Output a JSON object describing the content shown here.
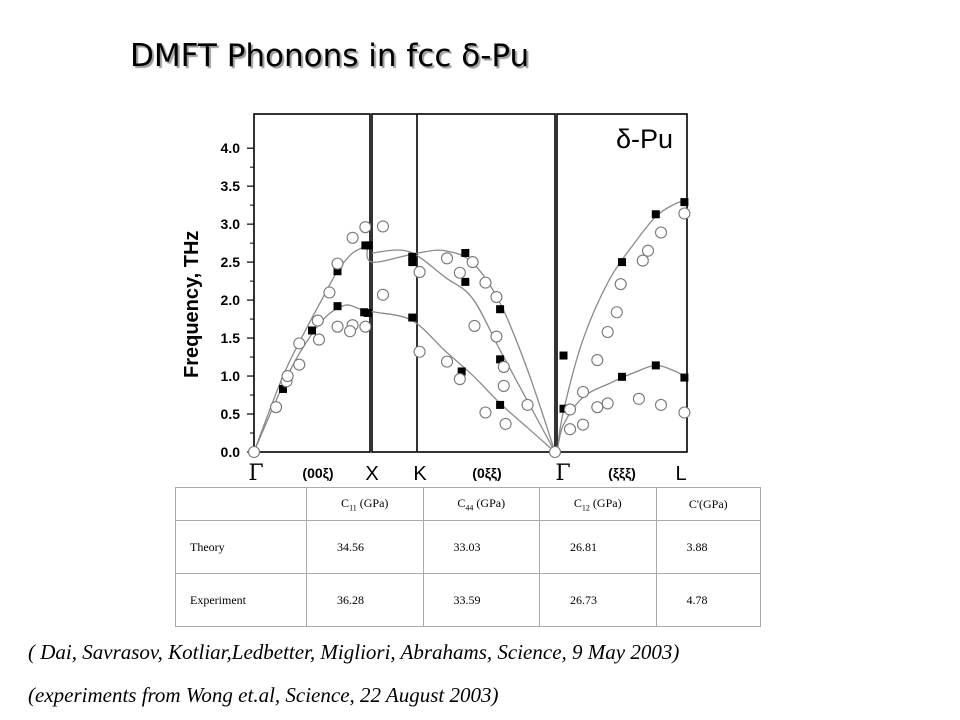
{
  "title": "DMFT  Phonons in fcc δ-Pu",
  "chart_data": {
    "type": "scatter",
    "ylabel": "Frequency, THz",
    "ylim": [
      0.0,
      4.5
    ],
    "yticks": [
      "0.0",
      "0.5",
      "1.0",
      "1.5",
      "2.0",
      "2.5",
      "3.0",
      "3.5",
      "4.0"
    ],
    "legend_label": "δ-Pu",
    "panels": [
      {
        "xlim": [
          0,
          1
        ],
        "direction": "(00ξ)",
        "ends": [
          "Γ",
          "X"
        ]
      },
      {
        "xlim": [
          0,
          1
        ],
        "direction": "(0ξξ)",
        "ends": [
          "K",
          "Γ"
        ]
      },
      {
        "xlim": [
          0,
          1
        ],
        "direction": "(ξξξ)",
        "ends": [
          "Γ",
          "L"
        ]
      }
    ],
    "symmetry_points": [
      "Γ",
      "X",
      "K",
      "Γ",
      "L"
    ],
    "series": [
      {
        "marker": "filled-square",
        "kind": "theory",
        "points": [
          {
            "panel": 0,
            "x": 0.0,
            "y": 0.0
          },
          {
            "panel": 0,
            "x": 0.25,
            "y": 0.83
          },
          {
            "panel": 0,
            "x": 0.5,
            "y": 1.6
          },
          {
            "panel": 0,
            "x": 0.72,
            "y": 1.92
          },
          {
            "panel": 0,
            "x": 0.95,
            "y": 1.84
          },
          {
            "panel": 0,
            "x": 0.98,
            "y": 1.83
          },
          {
            "panel": 0,
            "x": 0.72,
            "y": 2.38
          },
          {
            "panel": 0,
            "x": 0.96,
            "y": 2.72
          },
          {
            "panel": 0,
            "x": 0.99,
            "y": 2.72
          },
          {
            "panel": 1,
            "x": 0.22,
            "y": 2.57
          },
          {
            "panel": 1,
            "x": 0.22,
            "y": 2.5
          },
          {
            "panel": 1,
            "x": 0.51,
            "y": 2.62
          },
          {
            "panel": 1,
            "x": 0.51,
            "y": 2.24
          },
          {
            "panel": 1,
            "x": 0.7,
            "y": 1.88
          },
          {
            "panel": 1,
            "x": 0.7,
            "y": 1.22
          },
          {
            "panel": 1,
            "x": 0.22,
            "y": 1.77
          },
          {
            "panel": 1,
            "x": 0.49,
            "y": 1.06
          },
          {
            "panel": 1,
            "x": 0.7,
            "y": 0.62
          },
          {
            "panel": 1,
            "x": 1.0,
            "y": 0.0
          },
          {
            "panel": 2,
            "x": 0.05,
            "y": 1.27
          },
          {
            "panel": 2,
            "x": 0.05,
            "y": 0.57
          },
          {
            "panel": 2,
            "x": 0.5,
            "y": 2.5
          },
          {
            "panel": 2,
            "x": 0.5,
            "y": 0.99
          },
          {
            "panel": 2,
            "x": 0.76,
            "y": 3.13
          },
          {
            "panel": 2,
            "x": 0.76,
            "y": 1.14
          },
          {
            "panel": 2,
            "x": 0.98,
            "y": 3.29
          },
          {
            "panel": 2,
            "x": 0.98,
            "y": 0.98
          }
        ]
      },
      {
        "marker": "open-circle",
        "kind": "experiment",
        "points": [
          {
            "panel": 0,
            "x": 0.0,
            "y": 0.0
          },
          {
            "panel": 0,
            "x": 0.19,
            "y": 0.59
          },
          {
            "panel": 0,
            "x": 0.28,
            "y": 0.93
          },
          {
            "panel": 0,
            "x": 0.29,
            "y": 1.0
          },
          {
            "panel": 0,
            "x": 0.39,
            "y": 1.43
          },
          {
            "panel": 0,
            "x": 0.39,
            "y": 1.15
          },
          {
            "panel": 0,
            "x": 0.55,
            "y": 1.73
          },
          {
            "panel": 0,
            "x": 0.56,
            "y": 1.48
          },
          {
            "panel": 0,
            "x": 0.65,
            "y": 2.1
          },
          {
            "panel": 0,
            "x": 0.72,
            "y": 2.48
          },
          {
            "panel": 0,
            "x": 0.72,
            "y": 1.65
          },
          {
            "panel": 0,
            "x": 0.85,
            "y": 2.82
          },
          {
            "panel": 0,
            "x": 0.85,
            "y": 1.67
          },
          {
            "panel": 0,
            "x": 0.96,
            "y": 2.96
          },
          {
            "panel": 0,
            "x": 0.96,
            "y": 1.65
          },
          {
            "panel": 1,
            "x": 0.06,
            "y": 2.97
          },
          {
            "panel": 1,
            "x": 0.06,
            "y": 2.07
          },
          {
            "panel": 1,
            "x": -0.12,
            "y": 1.59
          },
          {
            "panel": 1,
            "x": 0.26,
            "y": 2.37
          },
          {
            "panel": 1,
            "x": 0.26,
            "y": 1.32
          },
          {
            "panel": 1,
            "x": 0.41,
            "y": 2.55
          },
          {
            "panel": 1,
            "x": 0.41,
            "y": 1.19
          },
          {
            "panel": 1,
            "x": 0.48,
            "y": 2.36
          },
          {
            "panel": 1,
            "x": 0.48,
            "y": 0.96
          },
          {
            "panel": 1,
            "x": 0.55,
            "y": 2.5
          },
          {
            "panel": 1,
            "x": 0.56,
            "y": 1.66
          },
          {
            "panel": 1,
            "x": 0.62,
            "y": 2.23
          },
          {
            "panel": 1,
            "x": 0.62,
            "y": 0.52
          },
          {
            "panel": 1,
            "x": 0.68,
            "y": 2.04
          },
          {
            "panel": 1,
            "x": 0.68,
            "y": 1.52
          },
          {
            "panel": 1,
            "x": 0.72,
            "y": 1.12
          },
          {
            "panel": 1,
            "x": 0.72,
            "y": 0.87
          },
          {
            "panel": 1,
            "x": 0.73,
            "y": 0.37
          },
          {
            "panel": 1,
            "x": 0.85,
            "y": 0.62
          },
          {
            "panel": 1,
            "x": 1.0,
            "y": 0.0
          },
          {
            "panel": 2,
            "x": 0.1,
            "y": 0.56
          },
          {
            "panel": 2,
            "x": 0.1,
            "y": 0.3
          },
          {
            "panel": 2,
            "x": 0.2,
            "y": 0.79
          },
          {
            "panel": 2,
            "x": 0.2,
            "y": 0.36
          },
          {
            "panel": 2,
            "x": 0.31,
            "y": 1.21
          },
          {
            "panel": 2,
            "x": 0.31,
            "y": 0.59
          },
          {
            "panel": 2,
            "x": 0.39,
            "y": 1.58
          },
          {
            "panel": 2,
            "x": 0.39,
            "y": 0.64
          },
          {
            "panel": 2,
            "x": 0.46,
            "y": 1.84
          },
          {
            "panel": 2,
            "x": 0.49,
            "y": 2.21
          },
          {
            "panel": 2,
            "x": 0.66,
            "y": 2.52
          },
          {
            "panel": 2,
            "x": 0.7,
            "y": 2.65
          },
          {
            "panel": 2,
            "x": 0.63,
            "y": 0.7
          },
          {
            "panel": 2,
            "x": 0.8,
            "y": 2.89
          },
          {
            "panel": 2,
            "x": 0.8,
            "y": 0.62
          },
          {
            "panel": 2,
            "x": 0.98,
            "y": 3.14
          },
          {
            "panel": 2,
            "x": 0.98,
            "y": 0.52
          }
        ]
      }
    ],
    "curves": [
      [
        [
          0,
          0,
          0.0
        ],
        [
          0,
          0.1,
          0.36
        ],
        [
          0,
          0.25,
          0.88
        ],
        [
          0,
          0.4,
          1.32
        ],
        [
          0,
          0.6,
          1.75
        ],
        [
          0,
          0.78,
          1.93
        ],
        [
          0,
          0.9,
          1.89
        ],
        [
          0,
          1.0,
          1.84
        ]
      ],
      [
        [
          0,
          0,
          0.0
        ],
        [
          0,
          0.25,
          1.0
        ],
        [
          0,
          0.45,
          1.62
        ],
        [
          0,
          0.6,
          2.05
        ],
        [
          0,
          0.72,
          2.38
        ],
        [
          0,
          0.85,
          2.62
        ],
        [
          0,
          1.0,
          2.73
        ]
      ],
      [
        [
          0,
          0.98,
          1.84
        ],
        [
          0,
          1.05,
          1.84
        ],
        [
          1,
          0.22,
          1.73
        ],
        [
          1,
          0.4,
          1.33
        ],
        [
          1,
          0.55,
          1.01
        ],
        [
          1,
          0.7,
          0.64
        ],
        [
          1,
          0.85,
          0.32
        ],
        [
          1,
          1.0,
          0.0
        ]
      ],
      [
        [
          0,
          0.98,
          2.73
        ],
        [
          1,
          0.0,
          2.5
        ],
        [
          1,
          0.25,
          2.62
        ],
        [
          1,
          0.4,
          2.65
        ],
        [
          1,
          0.55,
          2.49
        ],
        [
          1,
          0.7,
          1.96
        ],
        [
          1,
          0.85,
          1.08
        ],
        [
          1,
          1.0,
          0.0
        ]
      ],
      [
        [
          1,
          0.0,
          2.62
        ],
        [
          1,
          0.2,
          2.64
        ],
        [
          1,
          0.4,
          2.3
        ],
        [
          1,
          0.55,
          2.02
        ],
        [
          1,
          0.7,
          1.34
        ],
        [
          1,
          0.85,
          0.67
        ],
        [
          1,
          1.0,
          0.0
        ]
      ],
      [
        [
          2,
          0.0,
          0.0
        ],
        [
          2,
          0.05,
          0.36
        ],
        [
          2,
          0.2,
          0.72
        ],
        [
          2,
          0.4,
          0.9
        ],
        [
          2,
          0.6,
          1.05
        ],
        [
          2,
          0.76,
          1.14
        ],
        [
          2,
          0.9,
          1.07
        ],
        [
          2,
          1.0,
          0.98
        ]
      ],
      [
        [
          2,
          0.0,
          0.0
        ],
        [
          2,
          0.05,
          0.54
        ],
        [
          2,
          0.2,
          1.48
        ],
        [
          2,
          0.4,
          2.26
        ],
        [
          2,
          0.6,
          2.76
        ],
        [
          2,
          0.76,
          3.1
        ],
        [
          2,
          0.9,
          3.26
        ],
        [
          2,
          1.0,
          3.32
        ]
      ]
    ]
  },
  "table": {
    "headers": [
      "",
      "C11 (GPa)",
      "C44 (GPa)",
      "C12 (GPa)",
      "C'(GPa)"
    ],
    "header_cells": [
      {
        "main": "C",
        "sub": "11",
        "rest": " (GPa)"
      },
      {
        "main": "C",
        "sub": "44",
        "rest": " (GPa)"
      },
      {
        "main": "C",
        "sub": "12",
        "rest": " (GPa)"
      },
      {
        "main": "C'(GPa)",
        "sub": "",
        "rest": ""
      }
    ],
    "rows": [
      {
        "label": "Theory",
        "values": [
          "34.56",
          "33.03",
          "26.81",
          "3.88"
        ]
      },
      {
        "label": "Experiment",
        "values": [
          "36.28",
          "33.59",
          "26.73",
          "4.78"
        ]
      }
    ]
  },
  "citations": [
    "( Dai, Savrasov, Kotliar,Ledbetter, Migliori, Abrahams, Science, 9 May 2003)",
    "(experiments from Wong et.al, Science, 22 August 2003)"
  ]
}
